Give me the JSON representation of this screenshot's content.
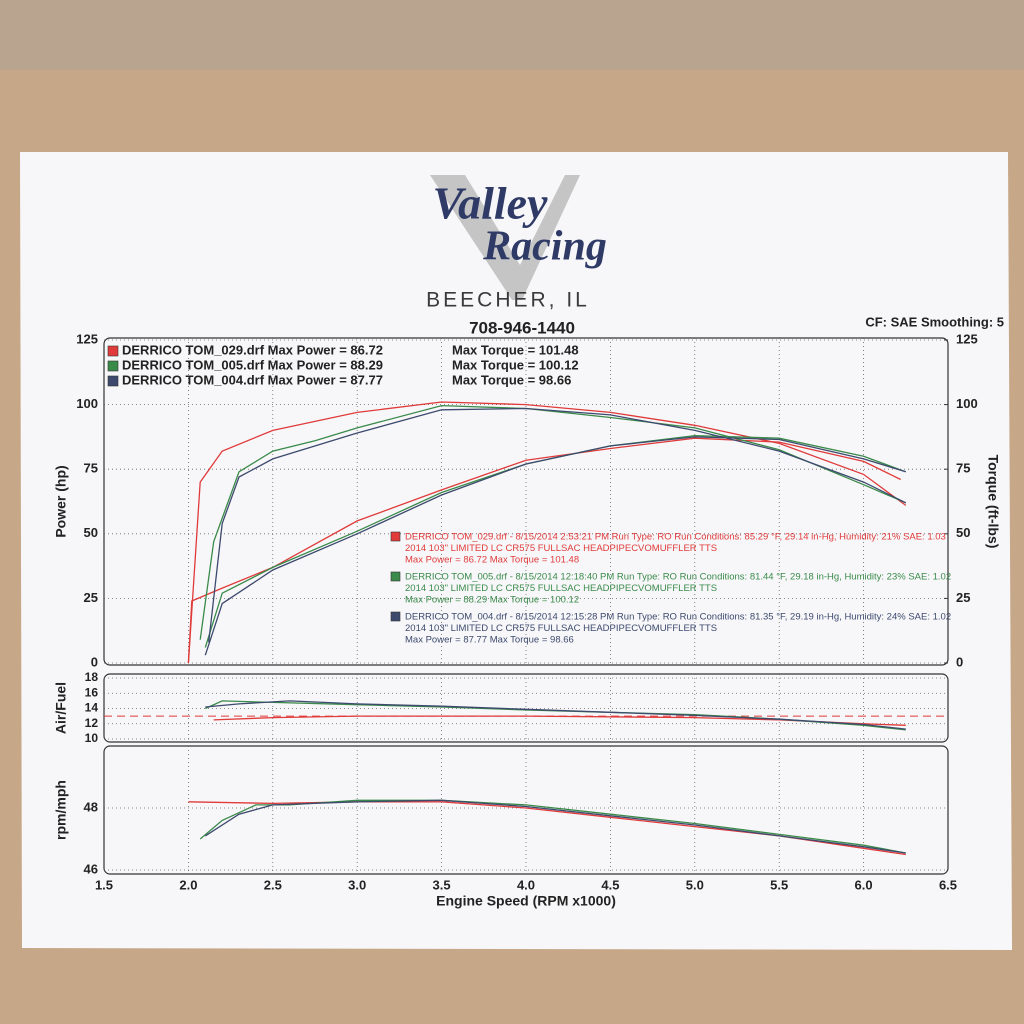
{
  "header": {
    "logo_line1": "Valley",
    "logo_line2": "Racing",
    "location": "BEECHER, IL",
    "phone": "708-946-1440",
    "settings": "CF: SAE  Smoothing: 5"
  },
  "run_notes": [
    {
      "line1": "DERRICO TOM_029.drf - 8/15/2014 2:53:21 PM  Run Type: RO  Run Conditions: 85.29 °F, 29.14 in-Hg,  Humidity:  21%  SAE: 1.03",
      "line2": "2014 103\" LIMITED LC CR575 FULLSAC HEADPIPECVOMUFFLER TTS",
      "line3": "Max Power = 86.72  Max Torque = 101.48"
    },
    {
      "line1": "DERRICO TOM_005.drf - 8/15/2014 12:18:40 PM  Run Type: RO  Run Conditions: 81.44 °F, 29.18 in-Hg,  Humidity:  23%  SAE: 1.02",
      "line2": "2014 103\" LIMITED LC CR575 FULLSAC HEADPIPECVOMUFFLER TTS",
      "line3": "Max Power = 88.29  Max Torque = 100.12"
    },
    {
      "line1": "DERRICO TOM_004.drf - 8/15/2014 12:15:28 PM  Run Type: RO  Run Conditions: 81.35 °F, 29.19 in-Hg,  Humidity:  24%  SAE: 1.02",
      "line2": "2014 103\" LIMITED LC CR575 FULLSAC HEADPIPECVOMUFFLER TTS",
      "line3": "Max Power = 87.77  Max Torque = 98.66"
    }
  ],
  "chart_data": [
    {
      "type": "line",
      "y_label": "Power (hp)",
      "y2_label": "Torque (ft-lbs)",
      "xlim": [
        1.5,
        6.5
      ],
      "ylim": [
        0,
        125
      ],
      "yticks": [
        0,
        25,
        50,
        75,
        100,
        125
      ],
      "y2lim": [
        0,
        125
      ],
      "y2ticks": [
        0,
        25,
        50,
        75,
        100,
        125
      ],
      "grid": true,
      "legend": "top-left",
      "series": [
        {
          "name": "DERRICO TOM_029.drf Max Power = 86.72",
          "color": "#e03a3a",
          "x": [
            2.0,
            2.02,
            2.2,
            2.5,
            3.0,
            3.5,
            4.0,
            4.5,
            5.0,
            5.5,
            6.0,
            6.22
          ],
          "values": [
            0,
            24,
            29,
            37,
            55,
            67,
            78.5,
            83,
            87,
            85.5,
            78,
            71
          ]
        },
        {
          "name": "Max Torque = 101.48",
          "color": "#e03a3a",
          "axis": "y2",
          "x": [
            2.0,
            2.07,
            2.2,
            2.5,
            3.0,
            3.5,
            4.0,
            4.5,
            5.0,
            5.5,
            6.0,
            6.25
          ],
          "values": [
            0,
            70,
            82,
            90,
            97,
            101,
            100,
            97,
            92,
            85,
            73,
            61
          ]
        },
        {
          "name": "DERRICO TOM_005.drf Max Power = 88.29",
          "color": "#3a8a4a",
          "x": [
            2.1,
            2.2,
            2.5,
            3.0,
            3.5,
            4.0,
            4.5,
            5.0,
            5.5,
            6.0,
            6.25
          ],
          "values": [
            6,
            27,
            37,
            51,
            66,
            77,
            84,
            88,
            87,
            80,
            74
          ]
        },
        {
          "name": "Max Torque = 100.12",
          "color": "#3a8a4a",
          "axis": "y2",
          "x": [
            2.07,
            2.15,
            2.3,
            2.5,
            2.75,
            3.0,
            3.5,
            4.0,
            4.5,
            5.0,
            5.5,
            6.0,
            6.25
          ],
          "values": [
            9,
            47,
            74,
            82,
            86,
            91,
            99.6,
            98.5,
            95,
            91,
            82.5,
            69,
            62
          ]
        },
        {
          "name": "DERRICO TOM_004.drf Max Power = 87.77",
          "color": "#3d4a6e",
          "x": [
            2.1,
            2.2,
            2.5,
            3.0,
            3.5,
            4.0,
            4.5,
            5.0,
            5.5,
            6.0,
            6.25
          ],
          "values": [
            3,
            23,
            36,
            50,
            65,
            77,
            84,
            87.5,
            86.5,
            79,
            74
          ]
        },
        {
          "name": "Max Torque = 98.66",
          "color": "#3d4a6e",
          "axis": "y2",
          "x": [
            2.12,
            2.2,
            2.3,
            2.5,
            3.0,
            3.5,
            4.0,
            4.5,
            5.0,
            5.5,
            6.0,
            6.25
          ],
          "values": [
            8,
            54,
            72,
            79,
            89,
            98,
            98.5,
            96,
            90,
            82,
            70,
            62
          ]
        }
      ]
    },
    {
      "type": "line",
      "y_label": "Air/Fuel",
      "xlim": [
        1.5,
        6.5
      ],
      "ylim": [
        10,
        18
      ],
      "yticks": [
        10,
        12,
        14,
        16,
        18
      ],
      "grid": true,
      "reference": {
        "value": 13,
        "color": "#e03a3a"
      },
      "series": [
        {
          "color": "#e03a3a",
          "x": [
            2.15,
            2.5,
            3.0,
            4.0,
            5.0,
            5.5,
            6.0,
            6.25
          ],
          "values": [
            12.5,
            12.8,
            13.0,
            13.0,
            12.8,
            12.5,
            12.0,
            11.8
          ]
        },
        {
          "color": "#3a8a4a",
          "x": [
            2.1,
            2.2,
            2.5,
            3.0,
            3.5,
            4.0,
            4.5,
            5.0,
            5.5,
            6.0,
            6.25
          ],
          "values": [
            14.0,
            15.0,
            14.8,
            14.5,
            14.2,
            13.8,
            13.5,
            13.2,
            12.6,
            11.8,
            11.2
          ]
        },
        {
          "color": "#3d4a6e",
          "x": [
            2.1,
            2.3,
            2.6,
            3.0,
            3.5,
            4.0,
            4.5,
            5.0,
            5.5,
            6.0,
            6.25
          ],
          "values": [
            14.2,
            14.6,
            15.0,
            14.6,
            14.3,
            13.9,
            13.5,
            13.1,
            12.6,
            11.9,
            11.3
          ]
        }
      ]
    },
    {
      "type": "line",
      "y_label": "rpm/mph",
      "x_label": "Engine Speed (RPM x1000)",
      "xlim": [
        1.5,
        6.5
      ],
      "xticks": [
        1.5,
        {
          "value": 2.0,
          "label": "2.0"
        },
        2.5,
        {
          "value": 3.0,
          "label": "3.0"
        },
        3.5,
        {
          "value": 4.0,
          "label": "4.0"
        },
        4.5,
        {
          "value": 5.0,
          "label": "5.0"
        },
        5.5,
        {
          "value": 6.0,
          "label": "6.0"
        },
        6.5
      ],
      "ylim": [
        46,
        50
      ],
      "yticks": [
        46,
        48
      ],
      "grid": true,
      "series": [
        {
          "color": "#e03a3a",
          "x": [
            2.0,
            2.5,
            3.0,
            3.5,
            4.0,
            4.5,
            5.0,
            5.5,
            6.0,
            6.25
          ],
          "values": [
            48.2,
            48.15,
            48.2,
            48.2,
            48.0,
            47.7,
            47.4,
            47.1,
            46.7,
            46.5
          ]
        },
        {
          "color": "#3a8a4a",
          "x": [
            2.07,
            2.2,
            2.4,
            2.6,
            3.0,
            3.5,
            4.0,
            4.5,
            5.0,
            5.5,
            6.0,
            6.25
          ],
          "values": [
            47.0,
            47.6,
            48.1,
            48.1,
            48.25,
            48.25,
            48.1,
            47.8,
            47.5,
            47.15,
            46.8,
            46.55
          ]
        },
        {
          "color": "#3d4a6e",
          "x": [
            2.1,
            2.3,
            2.5,
            3.0,
            3.5,
            4.0,
            4.5,
            5.0,
            5.5,
            6.0,
            6.25
          ],
          "values": [
            47.1,
            47.8,
            48.1,
            48.2,
            48.25,
            48.05,
            47.75,
            47.45,
            47.1,
            46.75,
            46.55
          ]
        }
      ]
    }
  ]
}
